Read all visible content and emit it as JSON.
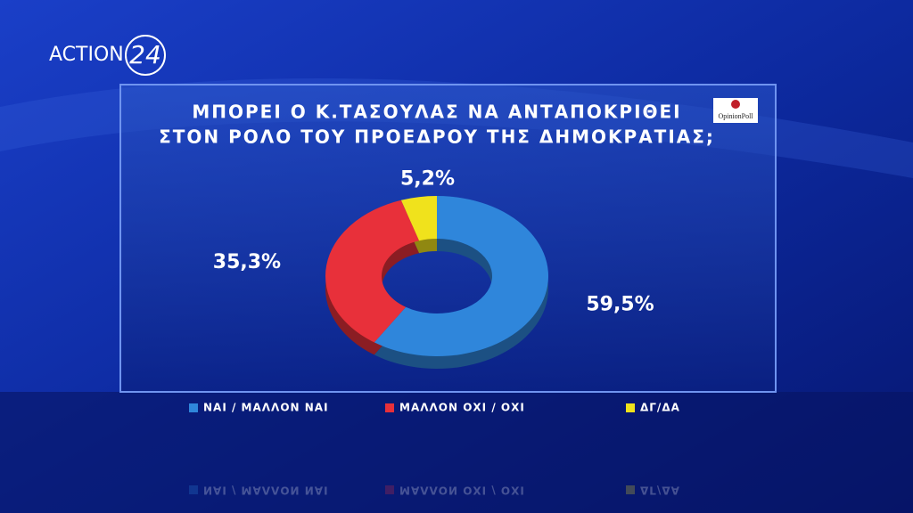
{
  "logo": {
    "brand": "ACTION",
    "number": "24"
  },
  "source": "OpinionPoll",
  "chart_data": {
    "type": "donut",
    "title": [
      "ΜΠΟΡΕΙ Ο Κ.ΤΑΣΟΥΛΑΣ ΝΑ ΑΝΤΑΠΟΚΡΙΘΕΙ",
      "ΣΤΟΝ ΡΟΛΟ ΤΟΥ ΠΡΟΕΔΡΟΥ ΤΗΣ ΔΗΜΟΚΡΑΤΙΑΣ;"
    ],
    "categories": [
      "ΝΑΙ / ΜΑΛΛΟΝ ΝΑΙ",
      "ΜΑΛΛΟΝ ΟΧΙ / ΟΧΙ",
      "ΔΓ/ΔΑ"
    ],
    "values": [
      59.5,
      35.3,
      5.2
    ],
    "value_labels": [
      "59,5%",
      "35,3%",
      "5,2%"
    ],
    "colors": [
      "#2f86db",
      "#e8303a",
      "#f0e21c"
    ]
  }
}
